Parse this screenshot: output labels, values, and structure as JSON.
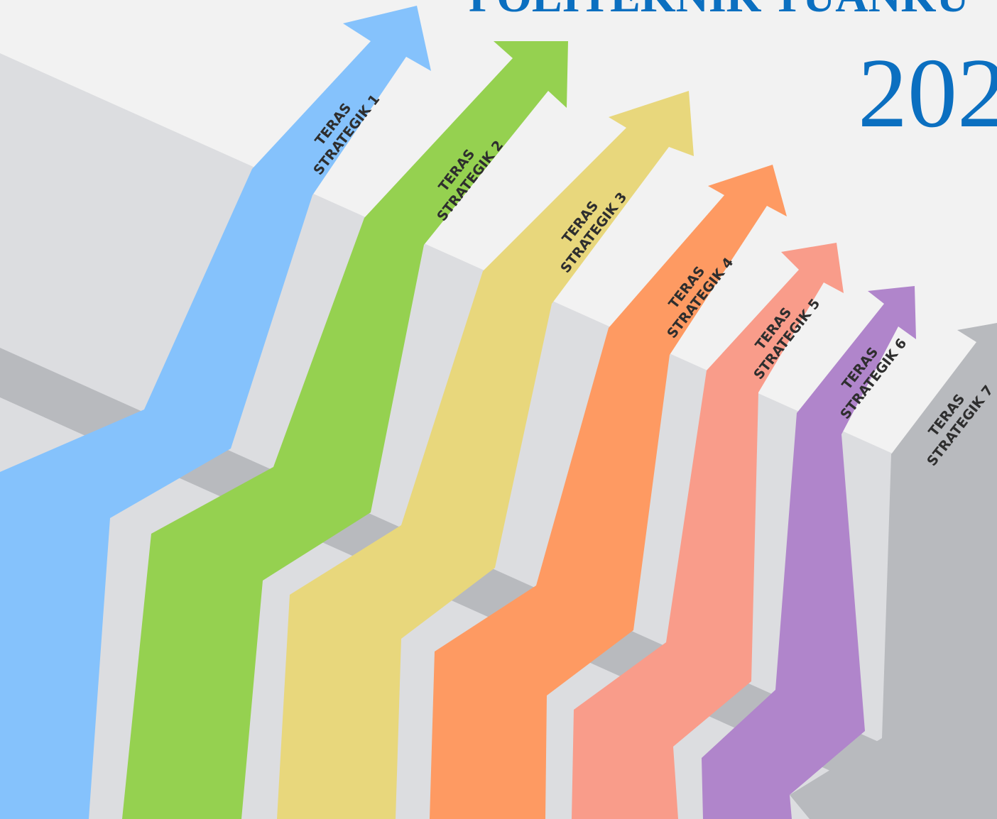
{
  "header": {
    "title": "POLITEKNIK TUANKU",
    "year": "202"
  },
  "arrows": [
    {
      "label": [
        "TERAS",
        "STRATEGIK 1"
      ]
    },
    {
      "label": [
        "TERAS",
        "STRATEGIK 2"
      ]
    },
    {
      "label": [
        "TERAS",
        "STRATEGIK 3"
      ]
    },
    {
      "label": [
        "TERAS",
        "STRATEGIK 4"
      ]
    },
    {
      "label": [
        "TERAS",
        "STRATEGIK 5"
      ]
    },
    {
      "label": [
        "TERAS",
        "STRATEGIK 6"
      ]
    },
    {
      "label": [
        "TERAS",
        "STRATEGIK 7"
      ]
    }
  ]
}
